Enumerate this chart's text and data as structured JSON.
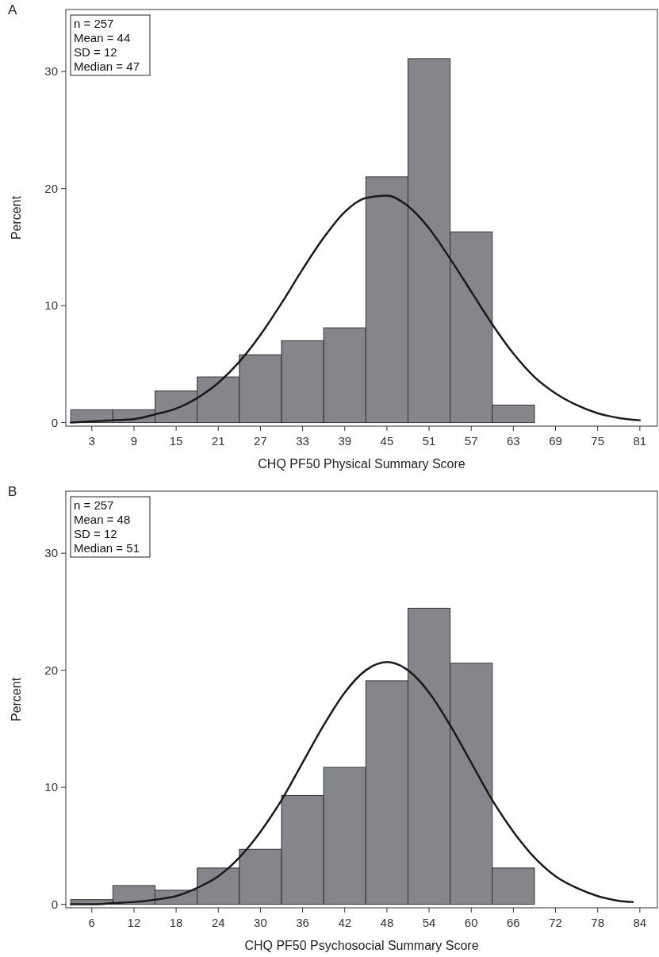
{
  "chart_data": [
    {
      "type": "histogram",
      "title": "A",
      "xlabel": "CHQ PF50 Physical Summary Score",
      "ylabel": "Percent",
      "annotations": [
        "n = 257",
        "Mean = 44",
        "SD = 12",
        "Median = 47"
      ],
      "bins": [
        0,
        6,
        12,
        18,
        24,
        30,
        36,
        42,
        48,
        54,
        60,
        66
      ],
      "xlim": [
        -0.7,
        83.5
      ],
      "xticks": [
        3,
        9,
        15,
        21,
        27,
        33,
        39,
        45,
        51,
        57,
        63,
        69,
        75,
        81
      ],
      "ylim": [
        -0.3,
        35.3
      ],
      "yticks": [
        0,
        10,
        20,
        30
      ],
      "grid": false,
      "series": [
        {
          "color": "#85868b",
          "values": [
            1.1,
            1.1,
            2.7,
            3.9,
            5.8,
            7.0,
            8.1,
            21.0,
            31.1,
            16.3,
            1.5
          ]
        },
        {
          "type": "line",
          "color": "#1a1a1a",
          "x": [
            0,
            3,
            6,
            9,
            12,
            15,
            18,
            21,
            24,
            27,
            30,
            33,
            36,
            39,
            42,
            45,
            48,
            51,
            54,
            57,
            60,
            63,
            66,
            69,
            72,
            75,
            78,
            81
          ],
          "values": [
            0.0,
            0.1,
            0.2,
            0.3,
            0.7,
            1.2,
            2.1,
            3.4,
            5.2,
            7.5,
            10.2,
            13.1,
            15.8,
            18.0,
            19.2,
            19.4,
            18.5,
            16.6,
            14.0,
            11.2,
            8.4,
            5.9,
            3.9,
            2.5,
            1.5,
            0.8,
            0.4,
            0.2
          ]
        }
      ]
    },
    {
      "type": "histogram",
      "title": "B",
      "xlabel": "CHQ PF50 Psychosocial Summary Score",
      "ylabel": "Percent",
      "annotations": [
        "n = 257",
        "Mean = 48",
        "SD = 12",
        "Median = 51"
      ],
      "bins": [
        3,
        9,
        15,
        21,
        27,
        33,
        39,
        45,
        51,
        57,
        63,
        69
      ],
      "xlim": [
        2.3,
        86.5
      ],
      "xticks": [
        6,
        12,
        18,
        24,
        30,
        36,
        42,
        48,
        54,
        60,
        66,
        72,
        78,
        84
      ],
      "ylim": [
        -0.3,
        35.3
      ],
      "yticks": [
        0,
        10,
        20,
        30
      ],
      "grid": false,
      "series": [
        {
          "color": "#85868b",
          "values": [
            0.4,
            1.6,
            1.2,
            3.1,
            4.7,
            9.3,
            11.7,
            19.1,
            25.3,
            20.6,
            3.1
          ]
        },
        {
          "type": "line",
          "color": "#1a1a1a",
          "x": [
            3,
            6,
            9,
            12,
            15,
            18,
            21,
            24,
            27,
            30,
            33,
            36,
            39,
            42,
            45,
            48,
            51,
            54,
            57,
            60,
            63,
            66,
            69,
            72,
            75,
            78,
            81,
            83
          ],
          "values": [
            0.0,
            0.0,
            0.1,
            0.2,
            0.4,
            0.7,
            1.4,
            2.4,
            4.0,
            6.2,
            8.9,
            12.1,
            15.3,
            18.1,
            20.0,
            20.7,
            20.0,
            18.1,
            15.3,
            12.1,
            8.9,
            6.2,
            4.0,
            2.4,
            1.4,
            0.7,
            0.3,
            0.2
          ]
        }
      ]
    }
  ]
}
